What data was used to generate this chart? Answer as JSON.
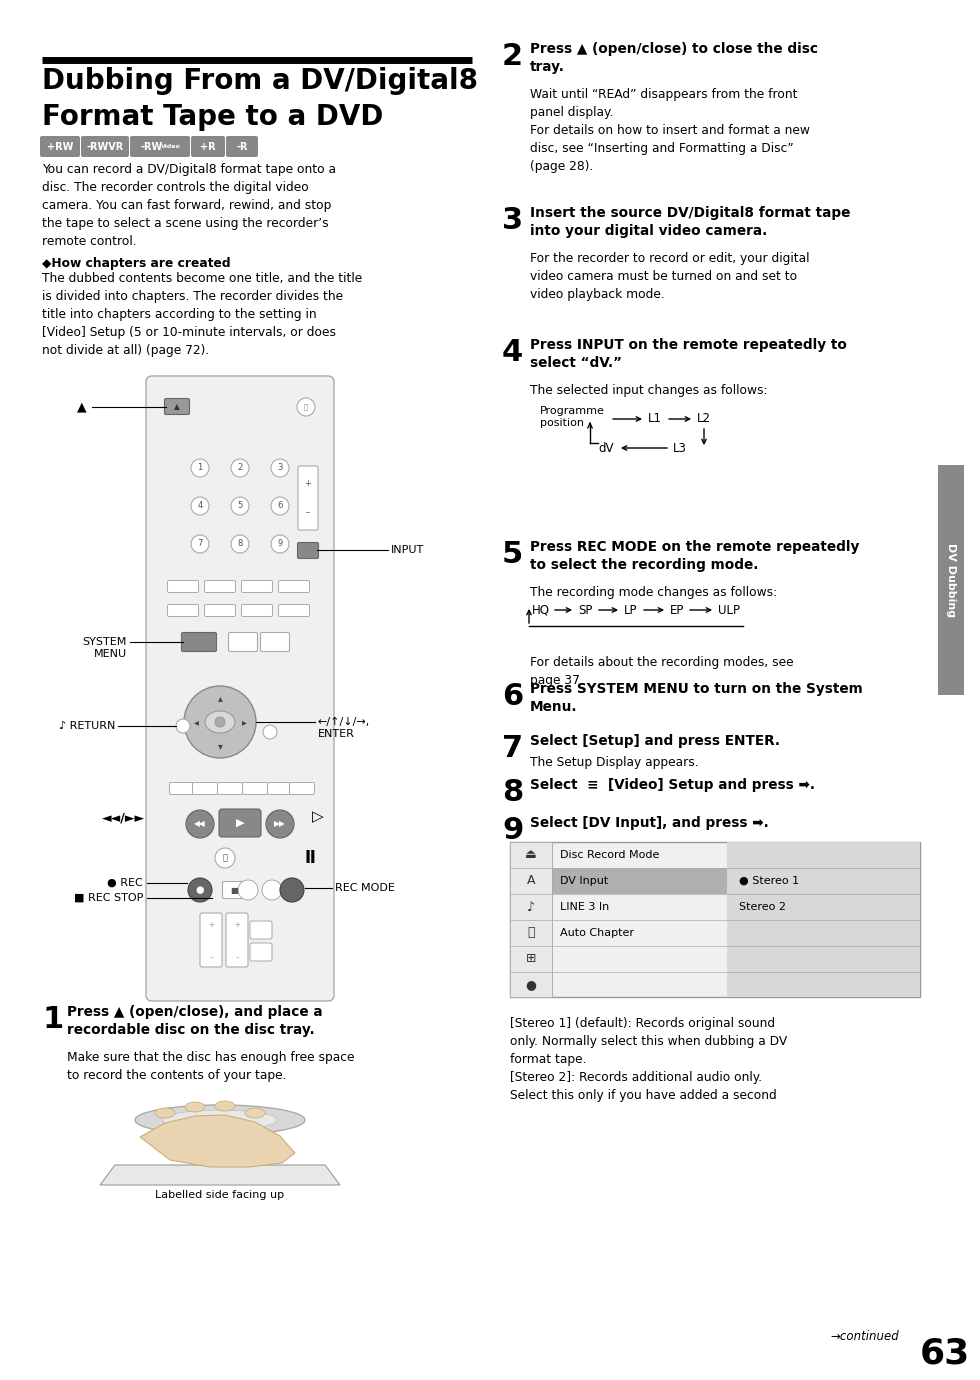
{
  "title_line1": "Dubbing From a DV/Digital8",
  "title_line2": "Format Tape to a DVD",
  "bg_color": "#ffffff",
  "text_color": "#000000",
  "sidebar_label": "DV Dubbing",
  "badges": [
    "+RW",
    "-RWVR",
    "-RWVideo",
    "+R",
    "-R"
  ],
  "badge_color": "#888888",
  "page_number": "63",
  "left_intro": "You can record a DV/Digital8 format tape onto a\ndisc. The recorder controls the digital video\ncamera. You can fast forward, rewind, and stop\nthe tape to select a scene using the recorder’s\nremote control.",
  "how_chapters_title": "◆How chapters are created",
  "how_chapters_body": "The dubbed contents become one title, and the title\nis divided into chapters. The recorder divides the\ntitle into chapters according to the setting in\n[Video] Setup (5 or 10-minute intervals, or does\nnot divide at all) (page 72).",
  "step1_bold": "Press ▲ (open/close), and place a\nrecordable disc on the disc tray.",
  "step1_body": "Make sure that the disc has enough free space\nto record the contents of your tape.",
  "step2_bold": "Press ▲ (open/close) to close the disc\ntray.",
  "step2_body": "Wait until “REAd” disappears from the front\npanel display.\nFor details on how to insert and format a new\ndisc, see “Inserting and Formatting a Disc”\n(page 28).",
  "step3_bold": "Insert the source DV/Digital8 format tape\ninto your digital video camera.",
  "step3_body": "For the recorder to record or edit, your digital\nvideo camera must be turned on and set to\nvideo playback mode.",
  "step4_bold": "Press INPUT on the remote repeatedly to\nselect “dV.”",
  "step4_body": "The selected input changes as follows:",
  "step5_bold": "Press REC MODE on the remote repeatedly\nto select the recording mode.",
  "step5_body": "The recording mode changes as follows:",
  "step5_note": "For details about the recording modes, see\npage 37.",
  "step6_bold": "Press SYSTEM MENU to turn on the System\nMenu.",
  "step7_bold": "Select [Setup] and press ENTER.",
  "step7_body": "The Setup Display appears.",
  "step8_bold": "Select  ≡  [Video] Setup and press ➡.",
  "step9_bold": "Select [DV Input], and press ➡.",
  "stereo_text": "[Stereo 1] (default): Records original sound\nonly. Normally select this when dubbing a DV\nformat tape.\n[Stereo 2]: Records additional audio only.\nSelect this only if you have added a second",
  "labelled_text": "Labelled side facing up",
  "continued_text": "→continued"
}
